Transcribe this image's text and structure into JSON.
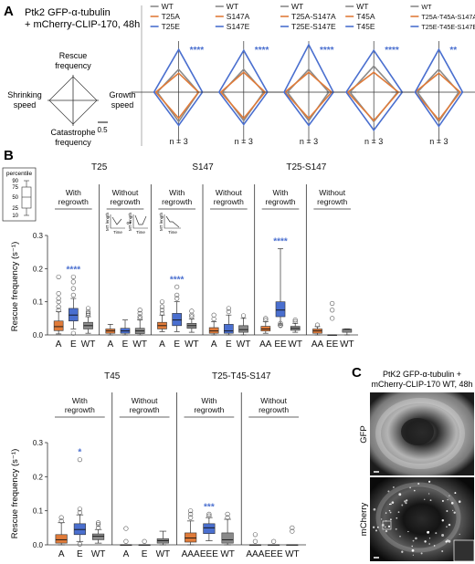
{
  "colors": {
    "orange": "#E07B39",
    "blue": "#4A6FCF",
    "gray": "#8A8A8A",
    "black": "#333333",
    "sig": "#4A6FCF"
  },
  "panel_a": {
    "letter": "A",
    "header": [
      "Ptk2 GFP-α-tubulin",
      "+ mCherry-CLIP-170, 48h"
    ],
    "axes_legend": {
      "top": [
        "Rescue",
        "frequency"
      ],
      "left": [
        "Shrinking",
        "speed"
      ],
      "right": [
        "Growth",
        "speed"
      ],
      "bottom": [
        "Catastrophe",
        "frequency"
      ],
      "scale": "0.5"
    }
  },
  "panel_b": {
    "letter": "B",
    "ylabel": "Rescue frequency (s⁻¹)",
    "legend_title": "percentile",
    "legend_ticks": [
      "90",
      "75",
      "50",
      "25",
      "10"
    ],
    "inset_ylabel": "MT length",
    "inset_xlabel": "Time",
    "inset_or": "or"
  },
  "panel_c": {
    "letter": "C",
    "title": [
      "PtK2 GFP-α-tubulin +",
      "mCherry-CLIP-170 WT, 48h"
    ],
    "label_top": "GFP",
    "label_bottom": "mCherry"
  },
  "chart_data": [
    {
      "type": "radar",
      "panel": "A",
      "axes": [
        "Rescue frequency",
        "Growth speed",
        "Catastrophe frequency",
        "Shrinking speed"
      ],
      "groups": [
        {
          "n_label": "n = 3",
          "sig": "****",
          "series": [
            {
              "name": "WT",
              "color": "gray",
              "values": [
                0.48,
                0.42,
                0.62,
                0.45
              ]
            },
            {
              "name": "T25A",
              "color": "orange",
              "values": [
                0.4,
                0.42,
                0.55,
                0.48
              ]
            },
            {
              "name": "T25E",
              "color": "blue",
              "values": [
                0.9,
                0.5,
                0.7,
                0.52
              ]
            }
          ]
        },
        {
          "n_label": "n = 3",
          "sig": "****",
          "series": [
            {
              "name": "WT",
              "color": "gray",
              "values": [
                0.48,
                0.42,
                0.6,
                0.45
              ]
            },
            {
              "name": "S147A",
              "color": "orange",
              "values": [
                0.42,
                0.45,
                0.55,
                0.48
              ]
            },
            {
              "name": "S147E",
              "color": "blue",
              "values": [
                0.88,
                0.5,
                0.68,
                0.52
              ]
            }
          ]
        },
        {
          "n_label": "n = 3",
          "sig": "****",
          "series": [
            {
              "name": "WT",
              "color": "gray",
              "values": [
                0.48,
                0.42,
                0.6,
                0.45
              ]
            },
            {
              "name": "T25A-S147A",
              "color": "orange",
              "values": [
                0.42,
                0.48,
                0.55,
                0.5
              ]
            },
            {
              "name": "T25E-S147E",
              "color": "blue",
              "values": [
                1.0,
                0.52,
                0.7,
                0.52
              ]
            }
          ]
        },
        {
          "n_label": "n = 3",
          "sig": "****",
          "series": [
            {
              "name": "WT",
              "color": "gray",
              "values": [
                0.55,
                0.5,
                0.62,
                0.5
              ]
            },
            {
              "name": "T45A",
              "color": "orange",
              "values": [
                0.42,
                0.52,
                0.6,
                0.55
              ]
            },
            {
              "name": "T45E",
              "color": "blue",
              "values": [
                0.88,
                0.6,
                0.8,
                0.58
              ]
            }
          ]
        },
        {
          "n_label": "n = 3",
          "sig": "**",
          "series": [
            {
              "name": "WT",
              "color": "gray",
              "values": [
                0.48,
                0.42,
                0.62,
                0.45
              ]
            },
            {
              "name": "T25A-T45A-S147A",
              "color": "orange",
              "values": [
                0.4,
                0.45,
                0.58,
                0.5
              ]
            },
            {
              "name": "T25E-T45E-S147E",
              "color": "blue",
              "values": [
                0.9,
                0.5,
                0.72,
                0.5
              ]
            }
          ]
        }
      ]
    },
    {
      "type": "box",
      "panel": "B-top",
      "ylim": [
        0,
        0.3
      ],
      "yticks": [
        0,
        0.1,
        0.2,
        0.3
      ],
      "groups": [
        {
          "title": "T25",
          "subgroups": [
            {
              "label": [
                "With",
                "regrowth"
              ],
              "boxes": [
                {
                  "category": "A",
                  "color": "orange",
                  "p10": 0.003,
                  "q1": 0.013,
                  "median": 0.025,
                  "q3": 0.042,
                  "p90": 0.07,
                  "outliers": [
                    0.075,
                    0.085,
                    0.1,
                    0.11,
                    0.125,
                    0.175
                  ]
                },
                {
                  "category": "E",
                  "color": "blue",
                  "p10": 0.018,
                  "q1": 0.042,
                  "median": 0.06,
                  "q3": 0.08,
                  "p90": 0.11,
                  "outliers": [
                    0.005,
                    0.12,
                    0.14,
                    0.16,
                    0.175
                  ],
                  "sig": "****"
                },
                {
                  "category": "WT",
                  "color": "gray",
                  "p10": 0.005,
                  "q1": 0.018,
                  "median": 0.028,
                  "q3": 0.038,
                  "p90": 0.055,
                  "outliers": [
                    0.06,
                    0.065,
                    0.07,
                    0.08
                  ]
                }
              ]
            },
            {
              "label": [
                "Without",
                "regrowth"
              ],
              "inset": "without",
              "boxes": [
                {
                  "category": "A",
                  "color": "orange",
                  "p10": 0.0,
                  "q1": 0.005,
                  "median": 0.012,
                  "q3": 0.018,
                  "p90": 0.032,
                  "outliers": []
                },
                {
                  "category": "E",
                  "color": "blue",
                  "p10": 0.0,
                  "q1": 0.005,
                  "median": 0.012,
                  "q3": 0.02,
                  "p90": 0.045,
                  "outliers": []
                },
                {
                  "category": "WT",
                  "color": "gray",
                  "p10": 0.0,
                  "q1": 0.004,
                  "median": 0.012,
                  "q3": 0.02,
                  "p90": 0.045,
                  "outliers": [
                    0.05,
                    0.055,
                    0.065,
                    0.075
                  ]
                }
              ]
            }
          ]
        },
        {
          "title": "S147",
          "subgroups": [
            {
              "label": [
                "With",
                "regrowth"
              ],
              "boxes": [
                {
                  "category": "A",
                  "color": "orange",
                  "p10": 0.01,
                  "q1": 0.018,
                  "median": 0.028,
                  "q3": 0.038,
                  "p90": 0.06,
                  "outliers": [
                    0.065,
                    0.075,
                    0.085,
                    0.1
                  ]
                },
                {
                  "category": "E",
                  "color": "blue",
                  "p10": 0.01,
                  "q1": 0.028,
                  "median": 0.045,
                  "q3": 0.065,
                  "p90": 0.1,
                  "outliers": [
                    0.11,
                    0.12,
                    0.145
                  ],
                  "sig": "****"
                },
                {
                  "category": "WT",
                  "color": "gray",
                  "p10": 0.008,
                  "q1": 0.02,
                  "median": 0.028,
                  "q3": 0.035,
                  "p90": 0.048,
                  "outliers": [
                    0.055,
                    0.06,
                    0.072
                  ]
                }
              ]
            },
            {
              "label": [
                "Without",
                "regrowth"
              ],
              "boxes": [
                {
                  "category": "A",
                  "color": "orange",
                  "p10": 0.0,
                  "q1": 0.005,
                  "median": 0.012,
                  "q3": 0.022,
                  "p90": 0.04,
                  "outliers": [
                    0.048,
                    0.06
                  ]
                },
                {
                  "category": "E",
                  "color": "blue",
                  "p10": 0.0,
                  "q1": 0.005,
                  "median": 0.012,
                  "q3": 0.032,
                  "p90": 0.06,
                  "outliers": [
                    0.07,
                    0.08
                  ]
                },
                {
                  "category": "WT",
                  "color": "gray",
                  "p10": 0.0,
                  "q1": 0.008,
                  "median": 0.016,
                  "q3": 0.028,
                  "p90": 0.05,
                  "outliers": [
                    0.058
                  ]
                }
              ]
            }
          ]
        },
        {
          "title": "T25-S147",
          "subgroups": [
            {
              "label": [
                "With",
                "regrowth"
              ],
              "boxes": [
                {
                  "category": "AA",
                  "color": "orange",
                  "p10": 0.005,
                  "q1": 0.012,
                  "median": 0.018,
                  "q3": 0.026,
                  "p90": 0.04,
                  "outliers": [
                    0.045,
                    0.05
                  ]
                },
                {
                  "category": "EE",
                  "color": "blue",
                  "p10": 0.03,
                  "q1": 0.055,
                  "median": 0.075,
                  "q3": 0.1,
                  "p90": 0.26,
                  "outliers": [
                    0.028,
                    0.03,
                    0.035
                  ],
                  "sig": "****"
                },
                {
                  "category": "WT",
                  "color": "gray",
                  "p10": 0.008,
                  "q1": 0.014,
                  "median": 0.02,
                  "q3": 0.026,
                  "p90": 0.035,
                  "outliers": [
                    0.04,
                    0.045
                  ]
                }
              ]
            },
            {
              "label": [
                "Without",
                "regrowth"
              ],
              "boxes": [
                {
                  "category": "AA",
                  "color": "orange",
                  "p10": 0.0,
                  "q1": 0.005,
                  "median": 0.012,
                  "q3": 0.018,
                  "p90": 0.025,
                  "outliers": [
                    0.03
                  ]
                },
                {
                  "category": "EE",
                  "color": "blue",
                  "p10": 0.0,
                  "q1": 0.0,
                  "median": 0.0,
                  "q3": 0.0,
                  "p90": 0.0,
                  "outliers": [
                    0.05,
                    0.075,
                    0.095
                  ]
                },
                {
                  "category": "WT",
                  "color": "gray",
                  "p10": 0.0,
                  "q1": 0.008,
                  "median": 0.017,
                  "q3": 0.017,
                  "p90": 0.018,
                  "outliers": []
                }
              ]
            }
          ]
        }
      ]
    },
    {
      "type": "box",
      "panel": "B-bottom",
      "ylim": [
        0,
        0.3
      ],
      "yticks": [
        0,
        0.1,
        0.2,
        0.3
      ],
      "groups": [
        {
          "title": "T45",
          "subgroups": [
            {
              "label": [
                "With",
                "regrowth"
              ],
              "boxes": [
                {
                  "category": "A",
                  "color": "orange",
                  "p10": 0.0,
                  "q1": 0.005,
                  "median": 0.015,
                  "q3": 0.03,
                  "p90": 0.065,
                  "outliers": [
                    0.07,
                    0.08
                  ]
                },
                {
                  "category": "E",
                  "color": "blue",
                  "p10": 0.01,
                  "q1": 0.03,
                  "median": 0.045,
                  "q3": 0.062,
                  "p90": 0.088,
                  "outliers": [
                    0.002,
                    0.095,
                    0.105,
                    0.25
                  ],
                  "sig": "*"
                },
                {
                  "category": "WT",
                  "color": "gray",
                  "p10": 0.005,
                  "q1": 0.015,
                  "median": 0.025,
                  "q3": 0.032,
                  "p90": 0.045,
                  "outliers": [
                    0.05,
                    0.06,
                    0.065
                  ]
                }
              ]
            },
            {
              "label": [
                "Without",
                "regrowth"
              ],
              "boxes": [
                {
                  "category": "A",
                  "color": "orange",
                  "p10": 0.0,
                  "q1": 0.0,
                  "median": 0.0,
                  "q3": 0.0,
                  "p90": 0.0,
                  "outliers": [
                    0.01,
                    0.048
                  ]
                },
                {
                  "category": "E",
                  "color": "blue",
                  "p10": 0.0,
                  "q1": 0.0,
                  "median": 0.0,
                  "q3": 0.0,
                  "p90": 0.0,
                  "outliers": [
                    0.01
                  ]
                },
                {
                  "category": "WT",
                  "color": "gray",
                  "p10": 0.0,
                  "q1": 0.005,
                  "median": 0.012,
                  "q3": 0.018,
                  "p90": 0.04,
                  "outliers": []
                }
              ]
            }
          ]
        },
        {
          "title": "T25-T45-S147",
          "subgroups": [
            {
              "label": [
                "With",
                "regrowth"
              ],
              "boxes": [
                {
                  "category": "AAA",
                  "color": "orange",
                  "p10": 0.0,
                  "q1": 0.008,
                  "median": 0.02,
                  "q3": 0.035,
                  "p90": 0.07,
                  "outliers": [
                    0.08,
                    0.09,
                    0.1
                  ]
                },
                {
                  "category": "EEE",
                  "color": "blue",
                  "p10": 0.012,
                  "q1": 0.033,
                  "median": 0.05,
                  "q3": 0.062,
                  "p90": 0.08,
                  "outliers": [
                    0.085,
                    0.09
                  ],
                  "sig": "***"
                },
                {
                  "category": "WT",
                  "color": "gray",
                  "p10": 0.0,
                  "q1": 0.005,
                  "median": 0.015,
                  "q3": 0.035,
                  "p90": 0.075,
                  "outliers": [
                    0.08,
                    0.09
                  ]
                }
              ]
            },
            {
              "label": [
                "Without",
                "regrowth"
              ],
              "boxes": [
                {
                  "category": "AAA",
                  "color": "orange",
                  "p10": 0.0,
                  "q1": 0.0,
                  "median": 0.0,
                  "q3": 0.0,
                  "p90": 0.0,
                  "outliers": [
                    0.01,
                    0.03
                  ]
                },
                {
                  "category": "EEE",
                  "color": "blue",
                  "p10": 0.0,
                  "q1": 0.0,
                  "median": 0.0,
                  "q3": 0.0,
                  "p90": 0.0,
                  "outliers": [
                    0.01
                  ]
                },
                {
                  "category": "WT",
                  "color": "gray",
                  "p10": 0.0,
                  "q1": 0.0,
                  "median": 0.0,
                  "q3": 0.0,
                  "p90": 0.0,
                  "outliers": [
                    0.04,
                    0.05
                  ]
                }
              ]
            }
          ]
        }
      ]
    }
  ]
}
